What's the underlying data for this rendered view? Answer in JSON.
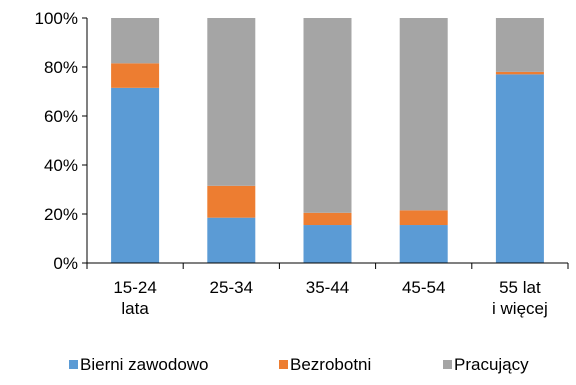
{
  "chart_data": {
    "type": "bar",
    "stacked": true,
    "percent": true,
    "categories": [
      [
        "15-24",
        "lata"
      ],
      [
        "25-34"
      ],
      [
        "35-44"
      ],
      [
        "45-54"
      ],
      [
        "55 lat",
        "i więcej"
      ]
    ],
    "series": [
      {
        "name": "Bierni zawodowo",
        "color": "#5b9bd5",
        "values": [
          71.5,
          18.5,
          15.5,
          15.5,
          77.0
        ]
      },
      {
        "name": "Bezrobotni",
        "color": "#ed7d31",
        "values": [
          10.0,
          13.0,
          5.0,
          6.0,
          1.0
        ]
      },
      {
        "name": "Pracujący",
        "color": "#a5a5a5",
        "values": [
          18.5,
          68.5,
          79.5,
          78.5,
          22.0
        ]
      }
    ],
    "ylim": [
      0,
      100
    ],
    "yticks": [
      0,
      20,
      40,
      60,
      80,
      100
    ],
    "ytick_labels": [
      "0%",
      "20%",
      "40%",
      "60%",
      "80%",
      "100%"
    ],
    "grid": false,
    "legend_position": "bottom"
  }
}
